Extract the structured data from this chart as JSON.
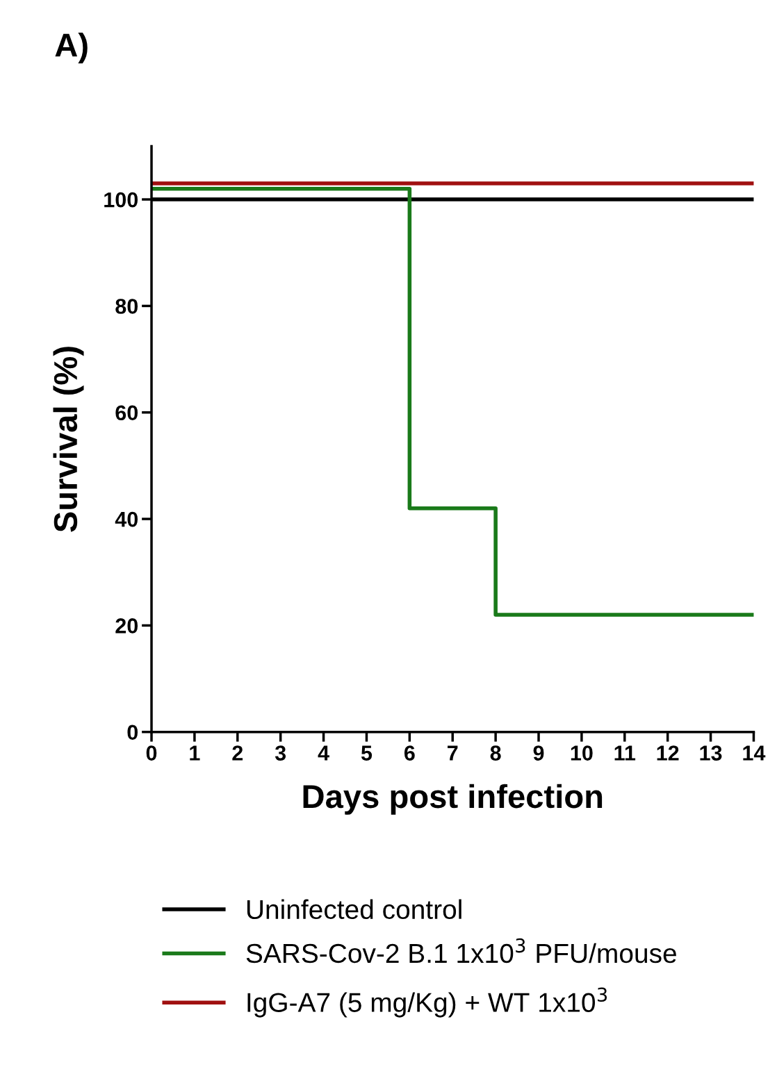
{
  "chart_data": {
    "type": "step",
    "title": "A)",
    "xlabel": "Days post infection",
    "ylabel": "Survival (%)",
    "series": [
      {
        "name": "Uninfected control",
        "color": "#000000",
        "x": [
          0,
          14
        ],
        "values": [
          100,
          100
        ]
      },
      {
        "name": "SARS-Cov-2 B.1 1x10$^{3}$ PFU/mouse",
        "color": "#1a7a1a",
        "x": [
          0,
          6,
          8,
          14
        ],
        "values": [
          102,
          42,
          22,
          22
        ]
      },
      {
        "name": "IgG-A7 (5 mg/Kg) + WT 1x10$^{3}$",
        "color": "#a01010",
        "x": [
          0,
          14
        ],
        "values": [
          103,
          103
        ]
      }
    ],
    "xlim": [
      0,
      14
    ],
    "xticks": [
      0,
      1,
      2,
      3,
      4,
      5,
      6,
      7,
      8,
      9,
      10,
      11,
      12,
      13,
      14
    ],
    "ylim": [
      0,
      110
    ],
    "yticks": [
      0,
      20,
      40,
      60,
      80,
      100
    ],
    "grid": false,
    "legend": "bottom",
    "line_style": "solid"
  }
}
